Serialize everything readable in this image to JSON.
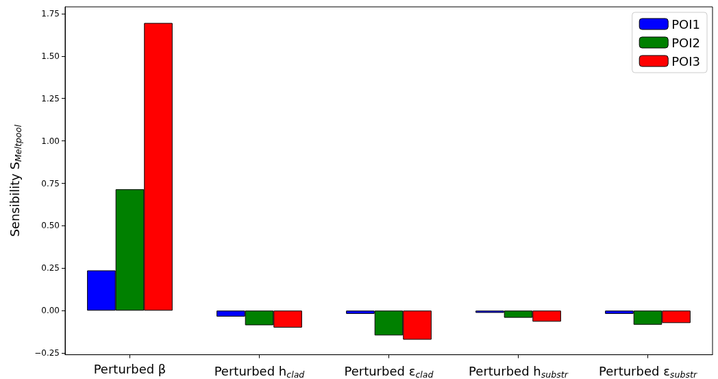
{
  "chart_data": {
    "type": "bar",
    "categories": [
      "Perturbed β",
      "Perturbed h$_{clad}$",
      "Perturbed ε$_{clad}$",
      "Perturbed h$_{substr}$",
      "Perturbed ε$_{substr}$"
    ],
    "series": [
      {
        "name": "POI1",
        "color": "#0000ff",
        "values": [
          0.237,
          -0.035,
          -0.019,
          -0.013,
          -0.019
        ]
      },
      {
        "name": "POI2",
        "color": "#008000",
        "values": [
          0.715,
          -0.086,
          -0.146,
          -0.042,
          -0.083
        ]
      },
      {
        "name": "POI3",
        "color": "#ff0000",
        "values": [
          1.695,
          -0.1,
          -0.171,
          -0.065,
          -0.073
        ]
      }
    ],
    "ylabel": "Sensibility S$_{Meltpool}$",
    "ylim": [
      -0.26,
      1.79
    ],
    "yticks": [
      {
        "value": -0.25,
        "label": "−0.25"
      },
      {
        "value": 0,
        "label": "0.00"
      },
      {
        "value": 0.25,
        "label": "0.25"
      },
      {
        "value": 0.5,
        "label": "0.50"
      },
      {
        "value": 0.75,
        "label": "0.75"
      },
      {
        "value": 1,
        "label": "1.00"
      },
      {
        "value": 1.25,
        "label": "1.25"
      },
      {
        "value": 1.5,
        "label": "1.50"
      },
      {
        "value": 1.75,
        "label": "1.75"
      }
    ],
    "grid": false,
    "legend": "top right"
  }
}
